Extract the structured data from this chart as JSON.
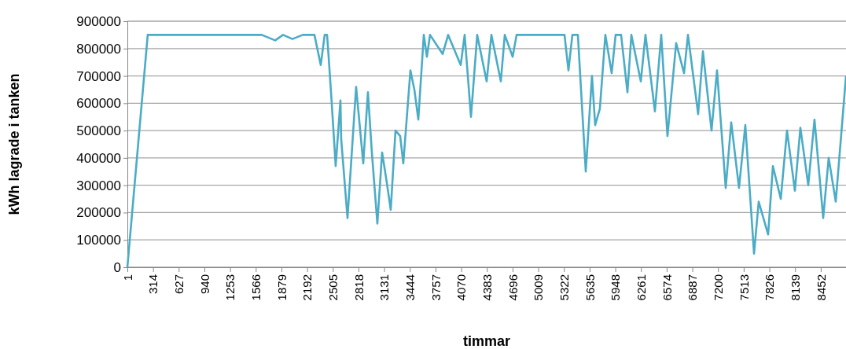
{
  "chart_data": {
    "type": "line",
    "xlabel": "timmar",
    "ylabel": "kWh lagrade i tanken",
    "xlim": [
      1,
      8760
    ],
    "xticks": [
      1,
      314,
      627,
      940,
      1253,
      1566,
      1879,
      2192,
      2505,
      2818,
      3131,
      3444,
      3757,
      4070,
      4383,
      4696,
      5009,
      5322,
      5635,
      5948,
      6261,
      6574,
      6887,
      7200,
      7513,
      7826,
      8139,
      8452
    ],
    "ylim": [
      0,
      900000
    ],
    "yticks": [
      0,
      100000,
      200000,
      300000,
      400000,
      500000,
      600000,
      700000,
      800000,
      900000
    ],
    "grid": "y",
    "marker": "none",
    "line_style": "solid",
    "series": [
      {
        "color": "#4bacc6",
        "x": [
          1,
          249,
          1639,
          1803,
          1898,
          2013,
          2138,
          2281,
          2358,
          2406,
          2435,
          2454,
          2492,
          2540,
          2598,
          2607,
          2684,
          2789,
          2876,
          2933,
          2981,
          3048,
          3106,
          3163,
          3211,
          3269,
          3326,
          3364,
          3451,
          3499,
          3547,
          3614,
          3652,
          3690,
          3844,
          3911,
          4064,
          4112,
          4189,
          4265,
          4380,
          4438,
          4553,
          4601,
          4697,
          4745,
          5329,
          5377,
          5425,
          5492,
          5588,
          5664,
          5703,
          5760,
          5827,
          5904,
          5952,
          6019,
          6096,
          6144,
          6259,
          6316,
          6431,
          6508,
          6584,
          6690,
          6786,
          6834,
          6958,
          7016,
          7121,
          7188,
          7294,
          7361,
          7456,
          7533,
          7639,
          7696,
          7811,
          7869,
          7965,
          8041,
          8137,
          8204,
          8300,
          8376,
          8482,
          8549,
          8635,
          8760
        ],
        "values": [
          0,
          850000,
          850000,
          830000,
          850000,
          835000,
          850000,
          850000,
          740000,
          850000,
          850000,
          770000,
          600000,
          370000,
          610000,
          470000,
          180000,
          660000,
          380000,
          640000,
          420000,
          160000,
          420000,
          310000,
          210000,
          500000,
          480000,
          380000,
          720000,
          650000,
          540000,
          850000,
          770000,
          850000,
          780000,
          850000,
          740000,
          850000,
          550000,
          850000,
          680000,
          850000,
          680000,
          850000,
          770000,
          850000,
          850000,
          720000,
          850000,
          850000,
          350000,
          700000,
          520000,
          580000,
          850000,
          710000,
          850000,
          850000,
          640000,
          850000,
          680000,
          850000,
          570000,
          850000,
          480000,
          820000,
          710000,
          850000,
          560000,
          790000,
          500000,
          720000,
          290000,
          530000,
          290000,
          520000,
          50000,
          240000,
          120000,
          370000,
          250000,
          500000,
          280000,
          510000,
          300000,
          540000,
          180000,
          400000,
          240000,
          700000
        ]
      }
    ]
  }
}
